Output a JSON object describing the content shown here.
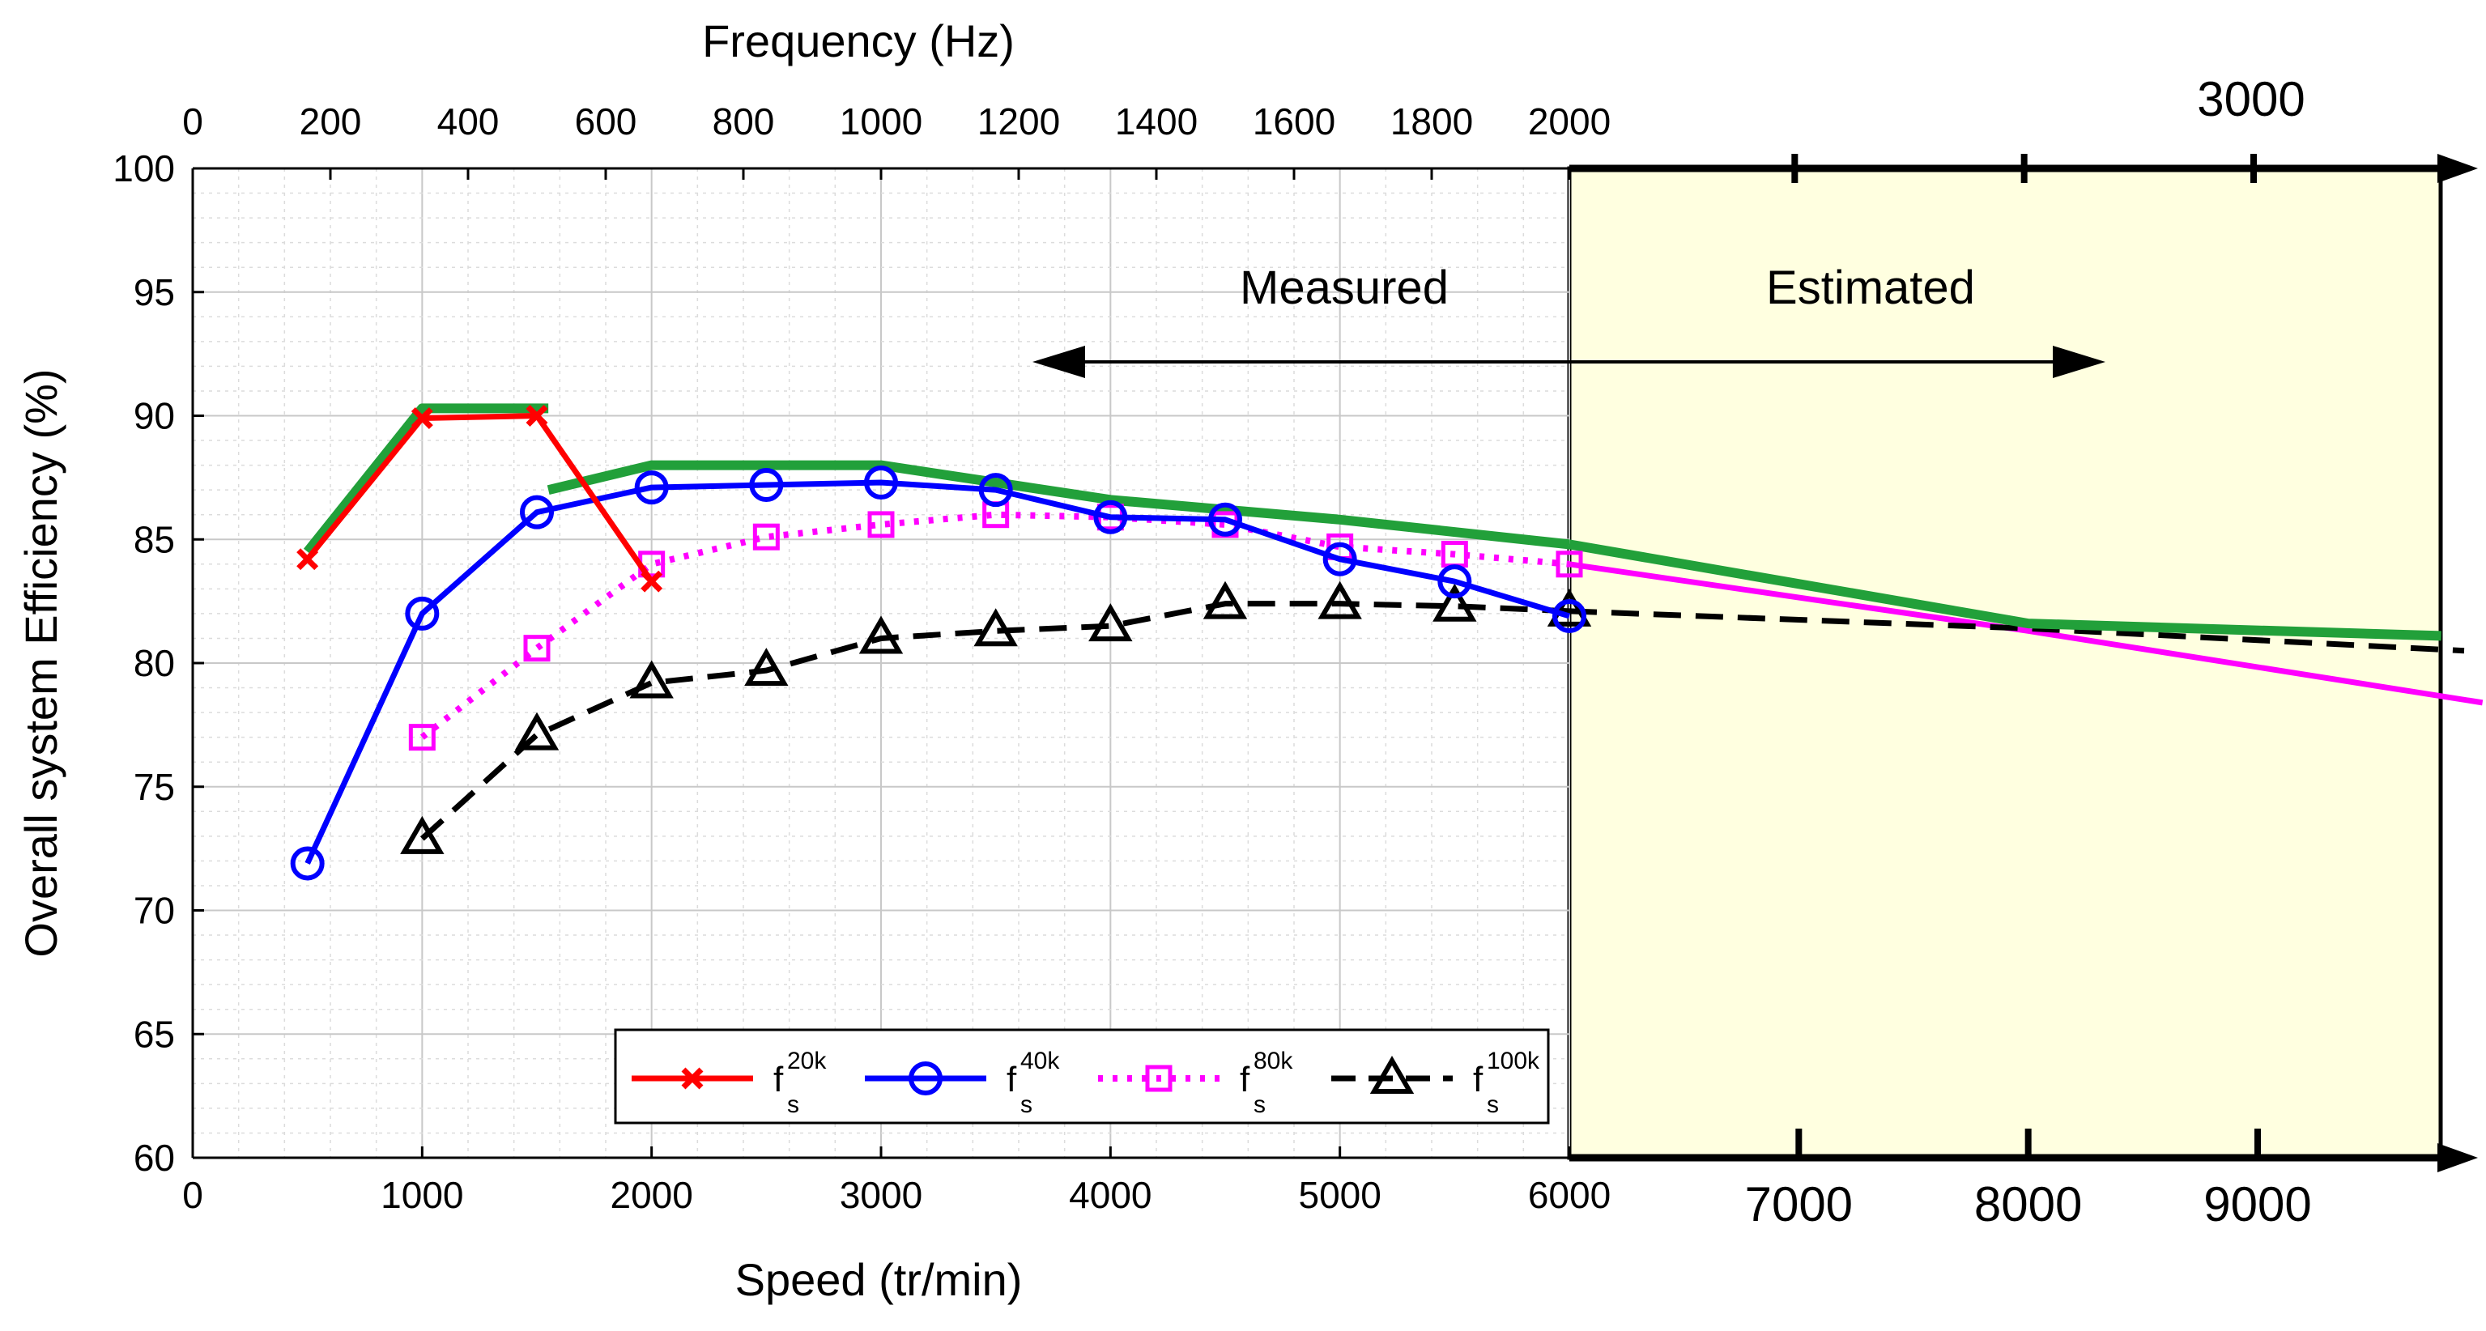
{
  "chart_data": {
    "type": "line",
    "xlabel": "Speed (tr/min)",
    "ylabel": "Overall system Efficiency (%)",
    "top_axis_label": "Frequency (Hz)",
    "ylim": [
      60,
      100
    ],
    "xlim_measured": [
      0,
      6000
    ],
    "xlim_estimated": [
      6000,
      9800
    ],
    "y_ticks": [
      "60",
      "65",
      "70",
      "75",
      "80",
      "85",
      "90",
      "95",
      "100"
    ],
    "x_ticks_measured": [
      "0",
      "1000",
      "2000",
      "3000",
      "4000",
      "5000",
      "6000"
    ],
    "x_ticks_estimated": [
      "7000",
      "8000",
      "9000"
    ],
    "top_ticks_measured": [
      "0",
      "200",
      "400",
      "600",
      "800",
      "1000",
      "1200",
      "1400",
      "1600",
      "1800",
      "2000"
    ],
    "top_tick_estimated": "3000",
    "grid": true,
    "annotations": {
      "measured": "Measured",
      "estimated": "Estimated"
    },
    "legend": {
      "position": "bottom-center",
      "entries": [
        {
          "base": "f",
          "sup": "20k",
          "sub": "s"
        },
        {
          "base": "f",
          "sup": "40k",
          "sub": "s"
        },
        {
          "base": "f",
          "sup": "80k",
          "sub": "s"
        },
        {
          "base": "f",
          "sup": "100k",
          "sub": "s"
        }
      ]
    },
    "series": [
      {
        "name": "fs 20k",
        "color": "#ff0000",
        "marker": "x",
        "style": "solid",
        "x": [
          500,
          1000,
          1500,
          2000
        ],
        "y": [
          84.2,
          89.9,
          90.0,
          83.3
        ]
      },
      {
        "name": "fs 40k",
        "color": "#0000ff",
        "marker": "circle",
        "style": "solid",
        "x": [
          500,
          1000,
          1500,
          2000,
          2500,
          3000,
          3500,
          4000,
          4500,
          5000,
          5500,
          6000
        ],
        "y": [
          71.9,
          82.0,
          86.1,
          87.1,
          87.2,
          87.3,
          87.0,
          85.9,
          85.8,
          84.2,
          83.3,
          81.9
        ]
      },
      {
        "name": "fs 80k",
        "color": "#ff00ff",
        "marker": "square",
        "style": "dotted",
        "x": [
          1000,
          1500,
          2000,
          2500,
          3000,
          3500,
          4000,
          4500,
          5000,
          5500,
          6000
        ],
        "y": [
          77.0,
          80.6,
          84.0,
          85.1,
          85.6,
          86.0,
          85.9,
          85.6,
          84.7,
          84.4,
          84.0
        ]
      },
      {
        "name": "fs 100k",
        "color": "#000000",
        "marker": "triangle",
        "style": "dashed",
        "x": [
          1000,
          1500,
          2000,
          2500,
          3000,
          3500,
          4000,
          4500,
          5000,
          5500,
          6000
        ],
        "y": [
          72.9,
          77.1,
          79.2,
          79.7,
          81.0,
          81.3,
          81.5,
          82.4,
          82.4,
          82.3,
          82.1
        ]
      },
      {
        "name": "envelope (measured)",
        "color": "#22a03a",
        "marker": "none",
        "style": "solid",
        "segments": [
          {
            "x": [
              500,
              1000,
              1550
            ],
            "y": [
              84.5,
              90.3,
              90.3
            ]
          },
          {
            "x": [
              1550,
              2000,
              3000,
              4000,
              5000,
              6000
            ],
            "y": [
              87.0,
              88.0,
              88.0,
              86.6,
              85.8,
              84.8
            ]
          }
        ]
      },
      {
        "name": "envelope (estimated)",
        "color": "#22a03a",
        "marker": "none",
        "style": "solid",
        "x": [
          6000,
          8000,
          9800
        ],
        "y": [
          84.8,
          81.6,
          81.1
        ]
      },
      {
        "name": "fs 80k (estimated)",
        "color": "#ff00ff",
        "marker": "none",
        "style": "solid",
        "x": [
          6000,
          8000,
          9980
        ],
        "y": [
          84.0,
          81.3,
          78.4
        ]
      },
      {
        "name": "fs 100k (estimated)",
        "color": "#000000",
        "marker": "none",
        "style": "dashed",
        "x": [
          6000,
          8000,
          9900
        ],
        "y": [
          82.1,
          81.4,
          80.5
        ]
      }
    ]
  }
}
